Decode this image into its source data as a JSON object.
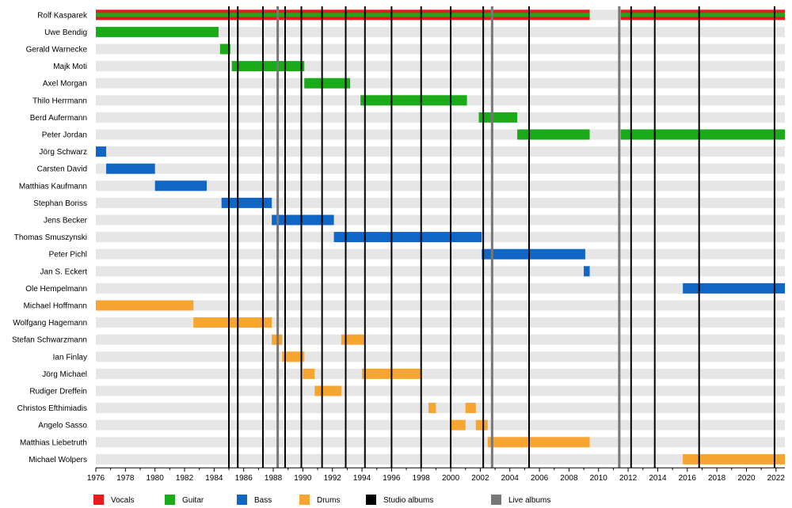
{
  "chart_data": {
    "type": "timeline",
    "title": "",
    "xlim": [
      1976,
      2022.6
    ],
    "x_ticks": [
      1976,
      1978,
      1980,
      1982,
      1984,
      1986,
      1988,
      1990,
      1992,
      1994,
      1996,
      1998,
      2000,
      2002,
      2004,
      2006,
      2008,
      2010,
      2012,
      2014,
      2016,
      2018,
      2020,
      2022
    ],
    "grid": "alternating row bands",
    "legend_position": "bottom",
    "legend": [
      {
        "key": "vocals",
        "label": "Vocals",
        "color": "#e41a1c"
      },
      {
        "key": "guitar",
        "label": "Guitar",
        "color": "#1aaa1a"
      },
      {
        "key": "bass",
        "label": "Bass",
        "color": "#0f66c4"
      },
      {
        "key": "drums",
        "label": "Drums",
        "color": "#f7a531"
      },
      {
        "key": "studio",
        "label": "Studio albums",
        "color": "#000000"
      },
      {
        "key": "live",
        "label": "Live albums",
        "color": "#777777"
      }
    ],
    "members": [
      {
        "name": "Rolf Kasparek",
        "spans": [
          {
            "role": "vocals",
            "start": 1976.0,
            "end": 2009.4
          },
          {
            "role": "guitar",
            "start": 1976.0,
            "end": 2009.4
          },
          {
            "role": "vocals",
            "start": 2011.5,
            "end": 2022.6
          },
          {
            "role": "guitar",
            "start": 2011.5,
            "end": 2022.6
          }
        ]
      },
      {
        "name": "Uwe Bendig",
        "spans": [
          {
            "role": "guitar",
            "start": 1976.0,
            "end": 1984.3
          }
        ]
      },
      {
        "name": "Gerald Warnecke",
        "spans": [
          {
            "role": "guitar",
            "start": 1984.4,
            "end": 1985.1
          }
        ]
      },
      {
        "name": "Majk Moti",
        "spans": [
          {
            "role": "guitar",
            "start": 1985.2,
            "end": 1990.1
          }
        ]
      },
      {
        "name": "Axel Morgan",
        "spans": [
          {
            "role": "guitar",
            "start": 1990.1,
            "end": 1993.2
          }
        ]
      },
      {
        "name": "Thilo Herrmann",
        "spans": [
          {
            "role": "guitar",
            "start": 1993.9,
            "end": 2001.1
          }
        ]
      },
      {
        "name": "Berd Aufermann",
        "spans": [
          {
            "role": "guitar",
            "start": 2001.9,
            "end": 2004.5
          }
        ]
      },
      {
        "name": "Peter Jordan",
        "spans": [
          {
            "role": "guitar",
            "start": 2004.5,
            "end": 2009.4
          },
          {
            "role": "guitar",
            "start": 2011.5,
            "end": 2022.6
          }
        ]
      },
      {
        "name": "Jörg Schwarz",
        "spans": [
          {
            "role": "bass",
            "start": 1976.0,
            "end": 1976.7
          }
        ]
      },
      {
        "name": "Carsten David",
        "spans": [
          {
            "role": "bass",
            "start": 1976.7,
            "end": 1980.0
          }
        ]
      },
      {
        "name": "Matthias Kaufmann",
        "spans": [
          {
            "role": "bass",
            "start": 1980.0,
            "end": 1983.5
          }
        ]
      },
      {
        "name": "Stephan Boriss",
        "spans": [
          {
            "role": "bass",
            "start": 1984.5,
            "end": 1987.9
          }
        ]
      },
      {
        "name": "Jens Becker",
        "spans": [
          {
            "role": "bass",
            "start": 1987.9,
            "end": 1992.1
          }
        ]
      },
      {
        "name": "Thomas Smuszynski",
        "spans": [
          {
            "role": "bass",
            "start": 1992.1,
            "end": 2002.1
          }
        ]
      },
      {
        "name": "Peter Pichl",
        "spans": [
          {
            "role": "bass",
            "start": 2002.1,
            "end": 2009.1
          }
        ]
      },
      {
        "name": "Jan S. Eckert",
        "spans": [
          {
            "role": "bass",
            "start": 2009.0,
            "end": 2009.4
          }
        ]
      },
      {
        "name": "Ole Hempelmann",
        "spans": [
          {
            "role": "bass",
            "start": 2015.7,
            "end": 2022.6
          }
        ]
      },
      {
        "name": "Michael Hoffmann",
        "spans": [
          {
            "role": "drums",
            "start": 1976.0,
            "end": 1982.6
          }
        ]
      },
      {
        "name": "Wolfgang Hagemann",
        "spans": [
          {
            "role": "drums",
            "start": 1982.6,
            "end": 1987.9
          }
        ]
      },
      {
        "name": "Stefan Schwarzmann",
        "spans": [
          {
            "role": "drums",
            "start": 1987.9,
            "end": 1988.6
          },
          {
            "role": "drums",
            "start": 1992.6,
            "end": 1994.2
          }
        ]
      },
      {
        "name": "Ian Finlay",
        "spans": [
          {
            "role": "drums",
            "start": 1988.6,
            "end": 1990.1
          }
        ]
      },
      {
        "name": "Jörg Michael",
        "spans": [
          {
            "role": "drums",
            "start": 1990.0,
            "end": 1990.8
          },
          {
            "role": "drums",
            "start": 1994.0,
            "end": 1998.0
          }
        ]
      },
      {
        "name": "Rudiger Dreffein",
        "spans": [
          {
            "role": "drums",
            "start": 1990.8,
            "end": 1992.6
          }
        ]
      },
      {
        "name": "Christos Efthimiadis",
        "spans": [
          {
            "role": "drums",
            "start": 1998.5,
            "end": 1999.0
          },
          {
            "role": "drums",
            "start": 2001.0,
            "end": 2001.7
          }
        ]
      },
      {
        "name": "Angelo Sasso",
        "spans": [
          {
            "role": "drums",
            "start": 2000.0,
            "end": 2001.0
          },
          {
            "role": "drums",
            "start": 2001.7,
            "end": 2002.5
          }
        ]
      },
      {
        "name": "Matthias Liebetruth",
        "spans": [
          {
            "role": "drums",
            "start": 2002.5,
            "end": 2009.4
          }
        ]
      },
      {
        "name": "Michael Wolpers",
        "spans": [
          {
            "role": "drums",
            "start": 2015.7,
            "end": 2022.6
          }
        ]
      }
    ],
    "studio_albums": [
      1985.0,
      1985.6,
      1987.3,
      1988.8,
      1989.9,
      1991.3,
      1992.9,
      1994.2,
      1996.0,
      1998.0,
      2000.0,
      2002.2,
      2005.3,
      2012.2,
      2013.8,
      2016.8,
      2021.9
    ],
    "live_albums": [
      1988.3,
      2002.8,
      2011.4
    ]
  }
}
